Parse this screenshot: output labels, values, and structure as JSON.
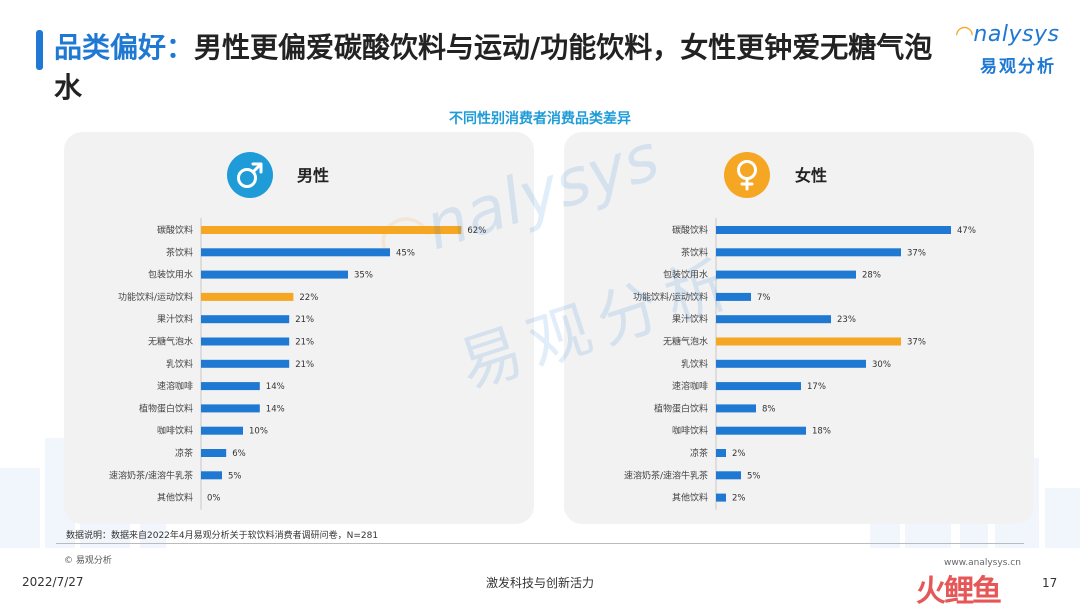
{
  "header": {
    "title_highlight": "品类偏好：",
    "title_rest": "男性更偏爱碳酸饮料与运动/功能饮料，女性更钟爱无糖气泡水",
    "logo_en_rest": "nalysys",
    "logo_cn": "易观分析"
  },
  "chart_subtitle": "不同性别消费者消费品类差异",
  "panels": {
    "male": {
      "label": "男性",
      "icon": "male-symbol-icon"
    },
    "female": {
      "label": "女性",
      "icon": "female-symbol-icon"
    }
  },
  "colors": {
    "blue": "#1f78d1",
    "orange": "#f5a623",
    "panel_bg": "#f2f2f2"
  },
  "chart_data": [
    {
      "type": "bar",
      "orientation": "horizontal",
      "title": "男性",
      "categories": [
        "碳酸饮料",
        "茶饮料",
        "包装饮用水",
        "功能饮料/运动饮料",
        "果汁饮料",
        "无糖气泡水",
        "乳饮料",
        "速溶咖啡",
        "植物蛋白饮料",
        "咖啡饮料",
        "凉茶",
        "速溶奶茶/速溶牛乳茶",
        "其他饮料"
      ],
      "values": [
        62,
        45,
        35,
        22,
        21,
        21,
        21,
        14,
        14,
        10,
        6,
        5,
        0
      ],
      "value_labels": [
        "62%",
        "45%",
        "35%",
        "22%",
        "21%",
        "21%",
        "21%",
        "14%",
        "14%",
        "10%",
        "6%",
        "5%",
        "0%"
      ],
      "highlight": [
        0,
        3
      ],
      "unit": "%"
    },
    {
      "type": "bar",
      "orientation": "horizontal",
      "title": "女性",
      "categories": [
        "碳酸饮料",
        "茶饮料",
        "包装饮用水",
        "功能饮料/运动饮料",
        "果汁饮料",
        "无糖气泡水",
        "乳饮料",
        "速溶咖啡",
        "植物蛋白饮料",
        "咖啡饮料",
        "凉茶",
        "速溶奶茶/速溶牛乳茶",
        "其他饮料"
      ],
      "values": [
        47,
        37,
        28,
        7,
        23,
        37,
        30,
        17,
        8,
        18,
        2,
        5,
        2
      ],
      "value_labels": [
        "47%",
        "37%",
        "28%",
        "7%",
        "23%",
        "37%",
        "30%",
        "17%",
        "8%",
        "18%",
        "2%",
        "5%",
        "2%"
      ],
      "highlight": [
        5
      ],
      "unit": "%"
    }
  ],
  "watermark": {
    "en_rest": "nalysys",
    "cn": "易观分析"
  },
  "footer": {
    "note": "数据说明：数据来自2022年4月易观分析关于软饮料消费者调研问卷，N=281",
    "copyright": "© 易观分析",
    "date": "2022/7/27",
    "center": "激发科技与创新活力",
    "site": "www.analysys.cn",
    "page": "17",
    "stamp": "火鲤鱼"
  }
}
